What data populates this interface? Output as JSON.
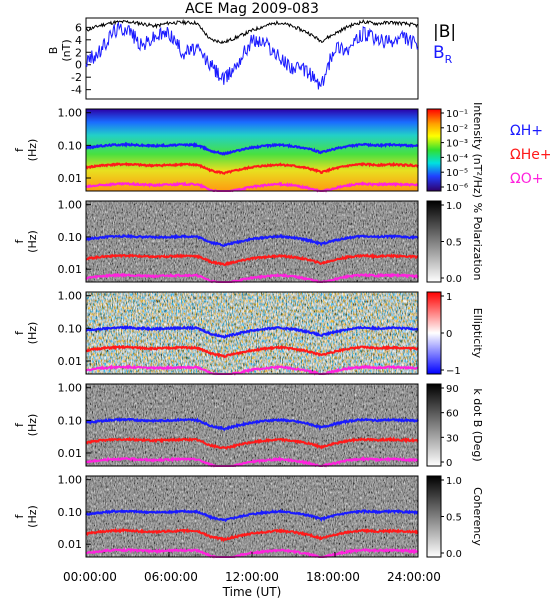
{
  "chart_data": {
    "title": "ACE Mag 2009-083",
    "type": "line",
    "x_axis": {
      "label": "Time (UT)",
      "ticks": [
        "00:00:00",
        "06:00:00",
        "12:00:00",
        "18:00:00",
        "24:00:00"
      ],
      "hours": [
        0,
        6,
        12,
        18,
        24
      ],
      "range": [
        0,
        24
      ]
    },
    "colors": {
      "B_total": "#000000",
      "B_R": "#1a1aff",
      "H_plus": "#1a1aff",
      "He_plus": "#ff1a1a",
      "O_plus": "#ff22dd"
    },
    "panels": [
      {
        "id": "field",
        "type": "line",
        "ylabel": [
          "B",
          "(nT)"
        ],
        "yticks": [
          6,
          4,
          2,
          0,
          -2,
          -4
        ],
        "ylim": [
          -5.5,
          7.5
        ],
        "legend": [
          "|B|",
          "B"
        ],
        "legend_sub": [
          "",
          "R"
        ],
        "series": [
          {
            "name": "|B|",
            "hours": [
              0,
              1,
              2,
              3,
              4,
              5,
              6,
              7,
              8,
              9,
              10,
              11,
              12,
              13,
              14,
              15,
              16,
              17,
              18,
              19,
              20,
              21,
              22,
              23,
              24
            ],
            "values": [
              5.5,
              6.3,
              6.8,
              6.9,
              6.6,
              6.2,
              6.7,
              6.8,
              6.7,
              4.0,
              3.6,
              4.5,
              5.5,
              6.3,
              6.8,
              6.1,
              5.2,
              3.8,
              5.0,
              6.2,
              6.9,
              6.6,
              6.8,
              6.6,
              6.3
            ]
          },
          {
            "name": "B_R",
            "hours": [
              0,
              1,
              2,
              3,
              4,
              5,
              6,
              7,
              8,
              9,
              10,
              11,
              12,
              13,
              14,
              15,
              16,
              17,
              18,
              19,
              20,
              21,
              22,
              23,
              24
            ],
            "values": [
              0.5,
              2.0,
              5.5,
              6.0,
              3.0,
              4.5,
              5.2,
              2.0,
              2.5,
              0.0,
              -2.5,
              0.5,
              4.0,
              3.5,
              1.0,
              -0.5,
              -1.0,
              -3.5,
              3.0,
              2.5,
              5.0,
              4.0,
              3.5,
              4.5,
              3.0
            ]
          }
        ]
      },
      {
        "id": "intensity",
        "type": "heatmap",
        "ylabel": [
          "f",
          "(Hz)"
        ],
        "yticks": [
          "1.00",
          "0.10",
          "0.01"
        ],
        "colorbar": {
          "label": "Intensity (nT²/Hz)",
          "ticks": [
            "10⁻¹",
            "10⁻²",
            "10⁻³",
            "10⁻⁴",
            "10⁻⁵",
            "10⁻⁶"
          ]
        },
        "side_labels": [
          "ΩH+",
          "ΩHe+",
          "ΩO+"
        ]
      },
      {
        "id": "polarization",
        "type": "heatmap",
        "ylabel": [
          "f",
          "(Hz)"
        ],
        "yticks": [
          "1.00",
          "0.10",
          "0.01"
        ],
        "colorbar": {
          "label": "% Polarization",
          "ticks": [
            "1.0",
            "0.5",
            "0.0"
          ]
        }
      },
      {
        "id": "ellipticity",
        "type": "heatmap",
        "ylabel": [
          "f",
          "(Hz)"
        ],
        "yticks": [
          "1.00",
          "0.10",
          "0.01"
        ],
        "colorbar": {
          "label": "Ellipticity",
          "ticks": [
            "1",
            "0",
            "−1"
          ]
        }
      },
      {
        "id": "kdotb",
        "type": "heatmap",
        "ylabel": [
          "f",
          "(Hz)"
        ],
        "yticks": [
          "1.00",
          "0.10",
          "0.01"
        ],
        "colorbar": {
          "label": "k dot B (Deg)",
          "ticks": [
            "90",
            "60",
            "30",
            "0"
          ]
        }
      },
      {
        "id": "coherency",
        "type": "heatmap",
        "ylabel": [
          "f",
          "(Hz)"
        ],
        "yticks": [
          "1.00",
          "0.10",
          "0.01"
        ],
        "colorbar": {
          "label": "Coherency",
          "ticks": [
            "1.0",
            "0.5",
            "0.0"
          ]
        }
      }
    ],
    "gyrofrequency_lines": [
      {
        "name": "ΩH+",
        "hours": [
          0,
          1,
          2,
          3,
          4,
          5,
          6,
          7,
          8,
          9,
          10,
          11,
          12,
          13,
          14,
          15,
          16,
          17,
          18,
          19,
          20,
          21,
          22,
          23,
          24
        ],
        "values_hz": [
          0.085,
          0.095,
          0.104,
          0.106,
          0.1,
          0.097,
          0.1,
          0.104,
          0.102,
          0.068,
          0.055,
          0.07,
          0.086,
          0.097,
          0.104,
          0.094,
          0.08,
          0.06,
          0.078,
          0.095,
          0.106,
          0.1,
          0.104,
          0.1,
          0.096
        ]
      },
      {
        "name": "ΩHe+",
        "hours": [
          0,
          1,
          2,
          3,
          4,
          5,
          6,
          7,
          8,
          9,
          10,
          11,
          12,
          13,
          14,
          15,
          16,
          17,
          18,
          19,
          20,
          21,
          22,
          23,
          24
        ],
        "values_hz": [
          0.021,
          0.024,
          0.026,
          0.0265,
          0.025,
          0.024,
          0.025,
          0.026,
          0.0255,
          0.017,
          0.014,
          0.0175,
          0.0215,
          0.024,
          0.026,
          0.0235,
          0.02,
          0.015,
          0.0195,
          0.024,
          0.0265,
          0.025,
          0.026,
          0.025,
          0.024
        ]
      },
      {
        "name": "ΩO+",
        "hours": [
          0,
          1,
          2,
          3,
          4,
          5,
          6,
          7,
          8,
          9,
          10,
          11,
          12,
          13,
          14,
          15,
          16,
          17,
          18,
          19,
          20,
          21,
          22,
          23,
          24
        ],
        "values_hz": [
          0.0053,
          0.006,
          0.0065,
          0.0066,
          0.0063,
          0.006,
          0.0063,
          0.0065,
          0.0064,
          0.0043,
          0.0035,
          0.0044,
          0.0054,
          0.006,
          0.0065,
          0.0059,
          0.005,
          0.0038,
          0.0049,
          0.006,
          0.0066,
          0.0063,
          0.0065,
          0.0063,
          0.006
        ]
      }
    ]
  }
}
